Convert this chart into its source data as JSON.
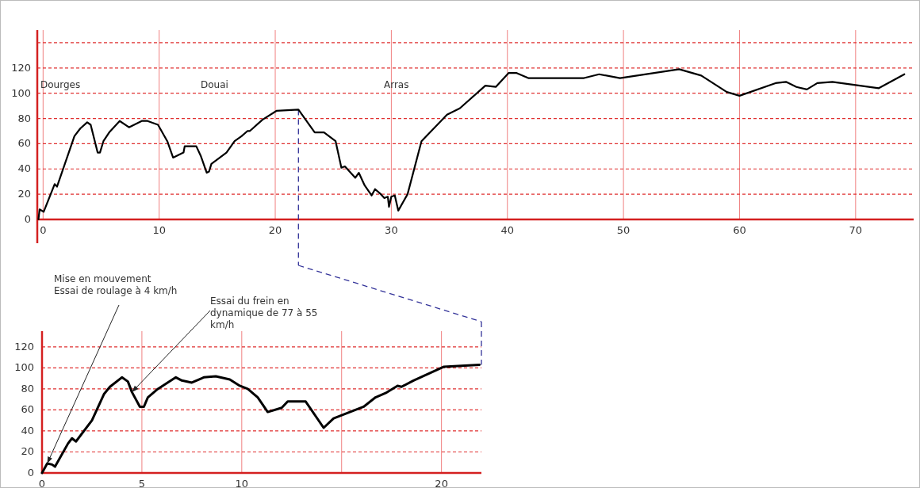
{
  "chart_data": [
    {
      "type": "line",
      "xlim": [
        -0.5,
        75
      ],
      "ylim": [
        0,
        150
      ],
      "xticks": [
        0,
        10,
        20,
        30,
        40,
        50,
        60,
        70
      ],
      "yticks": [
        0,
        20,
        40,
        60,
        80,
        100,
        120,
        {
          "value": 140,
          "label": null
        }
      ],
      "grid": true,
      "series": [
        {
          "color": "#000000",
          "x": [
            -0.4,
            -0.3,
            0.05,
            1.0,
            1.2,
            2.7,
            3.2,
            3.8,
            4.1,
            4.7,
            4.9,
            5.2,
            5.7,
            6.6,
            7.4,
            8.5,
            9.0,
            9.9,
            10.7,
            11.2,
            12.1,
            12.2,
            13.2,
            13.6,
            14.1,
            14.3,
            14.5,
            15.8,
            16.5,
            17.1,
            17.6,
            17.8,
            18.9,
            20.1,
            22.0,
            23.4,
            24.2,
            25.2,
            25.7,
            26.0,
            26.9,
            27.2,
            27.7,
            28.3,
            28.6,
            29.1,
            29.4,
            29.7,
            29.8,
            30.0,
            30.3,
            30.6,
            31.4,
            32.6,
            34.8,
            35.9,
            38.1,
            39.0,
            40.1,
            40.8,
            41.8,
            46.6,
            47.9,
            49.7,
            54.8,
            56.7,
            58.9,
            60.0,
            63.1,
            64.0,
            64.9,
            65.8,
            66.7,
            68.0,
            72.0,
            74.2
          ],
          "values": [
            0,
            8,
            6,
            28,
            26,
            66,
            72,
            77,
            75,
            53,
            53,
            62,
            69,
            78,
            73,
            78,
            78,
            75,
            62,
            49,
            53,
            58,
            58,
            50,
            37,
            38,
            44,
            53,
            62,
            66,
            70,
            70,
            79,
            86,
            87,
            69,
            69,
            62,
            41,
            42,
            33,
            37,
            27,
            19,
            24,
            20,
            17,
            18,
            10,
            18,
            19,
            7,
            20,
            62,
            83,
            88,
            106,
            105,
            116,
            116,
            112,
            112,
            115,
            112,
            119,
            114,
            101,
            98,
            108,
            109,
            105,
            103,
            108,
            109,
            104,
            115
          ]
        }
      ],
      "annotations": [
        "Dourges",
        "Douai",
        "Arras"
      ],
      "ref_lines": [
        {
          "axis": "x",
          "value": 22,
          "color": "#333399",
          "line_style": "dashed"
        }
      ]
    },
    {
      "type": "line",
      "xlim": [
        0,
        22
      ],
      "ylim": [
        0,
        135
      ],
      "xticks": [
        0,
        5,
        10,
        {
          "value": 15,
          "label": null
        },
        20
      ],
      "yticks": [
        0,
        20,
        40,
        60,
        80,
        100,
        120
      ],
      "grid": true,
      "series": [
        {
          "color": "#000000",
          "x": [
            0,
            0.26,
            0.5,
            0.65,
            1.3,
            1.5,
            1.7,
            2.5,
            3.1,
            3.4,
            4.0,
            4.3,
            4.5,
            4.9,
            5.1,
            5.3,
            5.8,
            6.7,
            7.0,
            7.5,
            8.1,
            8.7,
            9.4,
            9.9,
            10.3,
            10.8,
            11.3,
            12.0,
            12.3,
            13.2,
            14.1,
            14.6,
            16.1,
            16.7,
            17.2,
            17.8,
            18.0,
            18.6,
            20.1,
            21.9
          ],
          "values": [
            0,
            9,
            8,
            6,
            28,
            33,
            30,
            50,
            75,
            82,
            91,
            87,
            77,
            63,
            63,
            72,
            80,
            91,
            88,
            86,
            91,
            92,
            89,
            83,
            80,
            72,
            58,
            62,
            68,
            68,
            43,
            52,
            63,
            72,
            76,
            83,
            82,
            88,
            101,
            103
          ]
        }
      ],
      "ref_lines": [
        {
          "axis": "x",
          "value": 22,
          "color": "#333399",
          "line_style": "dashed"
        }
      ],
      "annotations": [
        {
          "text": "Mise en mouvement\nEssai de roulage à 4 km/h",
          "x": 0.26,
          "y": 9
        },
        {
          "text": "Essai du frein en\ndynamique de 77 à 55\nkm/h",
          "x": 4.5,
          "y": 77
        }
      ]
    }
  ]
}
